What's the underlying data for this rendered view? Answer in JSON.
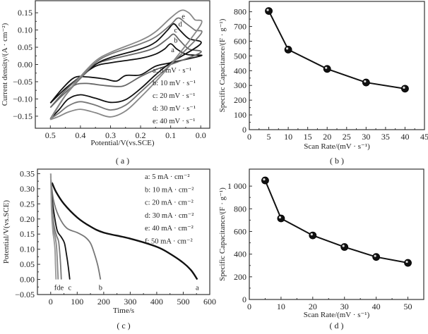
{
  "chart_data": [
    {
      "id": "a",
      "type": "line",
      "caption": "( a )",
      "xlabel": "Potential/V(vs.SCE)",
      "ylabel": "Current density/(A · cm⁻²)",
      "xlim": [
        0.55,
        -0.03
      ],
      "ylim": [
        -0.185,
        0.185
      ],
      "x_reversed": true,
      "xticks": [
        0.5,
        0.4,
        0.3,
        0.2,
        0.1,
        0.0
      ],
      "xtick_labels": [
        "0.5",
        "0.4",
        "0.3",
        "0.2",
        "0.1",
        "0.0"
      ],
      "yticks": [
        0.15,
        0.1,
        0.05,
        0.0,
        -0.05,
        -0.1,
        -0.15
      ],
      "ytick_labels": [
        "0.15",
        "0.10",
        "0.05",
        "0.00",
        "−0.05",
        "−0.10",
        "−0.15"
      ],
      "legend": [
        "a: 5 mV · s⁻¹",
        "b: 10 mV · s⁻¹",
        "c: 20 mV · s⁻¹",
        "d: 30 mV · s⁻¹",
        "e: 40 mV · s⁻¹"
      ],
      "legend_position": "bottom-right",
      "series": [
        {
          "name": "a",
          "color": "#111111",
          "anodic_peak": [
            0.1,
            0.06
          ],
          "anodic": [
            [
              0.5,
              -0.112
            ],
            [
              0.45,
              -0.07
            ],
            [
              0.4,
              -0.035
            ],
            [
              0.35,
              -0.005
            ],
            [
              0.3,
              0.005
            ],
            [
              0.2,
              0.018
            ],
            [
              0.15,
              0.03
            ],
            [
              0.12,
              0.045
            ],
            [
              0.1,
              0.06
            ],
            [
              0.08,
              0.045
            ],
            [
              0.05,
              0.03
            ],
            [
              0.02,
              0.027
            ],
            [
              0.0,
              0.025
            ]
          ],
          "cathodic": [
            [
              0.0,
              0.025
            ],
            [
              0.1,
              0.005
            ],
            [
              0.15,
              -0.005
            ],
            [
              0.2,
              -0.03
            ],
            [
              0.25,
              -0.032
            ],
            [
              0.28,
              -0.048
            ],
            [
              0.32,
              -0.042
            ],
            [
              0.38,
              -0.036
            ],
            [
              0.42,
              -0.038
            ],
            [
              0.46,
              -0.07
            ],
            [
              0.5,
              -0.112
            ]
          ]
        },
        {
          "name": "b",
          "color": "#666666",
          "anodic_peak": [
            0.09,
            0.088
          ],
          "anodic": [
            [
              0.5,
              -0.125
            ],
            [
              0.45,
              -0.075
            ],
            [
              0.4,
              -0.035
            ],
            [
              0.35,
              0.0
            ],
            [
              0.3,
              0.015
            ],
            [
              0.2,
              0.035
            ],
            [
              0.15,
              0.05
            ],
            [
              0.11,
              0.075
            ],
            [
              0.09,
              0.088
            ],
            [
              0.07,
              0.07
            ],
            [
              0.04,
              0.045
            ],
            [
              0.0,
              0.035
            ]
          ],
          "cathodic": [
            [
              0.0,
              0.035
            ],
            [
              0.1,
              0.0
            ],
            [
              0.15,
              -0.015
            ],
            [
              0.2,
              -0.035
            ],
            [
              0.25,
              -0.06
            ],
            [
              0.28,
              -0.064
            ],
            [
              0.33,
              -0.06
            ],
            [
              0.38,
              -0.055
            ],
            [
              0.42,
              -0.06
            ],
            [
              0.46,
              -0.09
            ],
            [
              0.5,
              -0.125
            ]
          ]
        },
        {
          "name": "c",
          "color": "#111111",
          "anodic_peak": [
            0.09,
            0.118
          ],
          "anodic": [
            [
              0.5,
              -0.158
            ],
            [
              0.45,
              -0.09
            ],
            [
              0.4,
              -0.04
            ],
            [
              0.35,
              0.0
            ],
            [
              0.3,
              0.02
            ],
            [
              0.2,
              0.045
            ],
            [
              0.15,
              0.065
            ],
            [
              0.11,
              0.1
            ],
            [
              0.09,
              0.118
            ],
            [
              0.07,
              0.1
            ],
            [
              0.04,
              0.075
            ],
            [
              0.0,
              0.06
            ]
          ],
          "cathodic": [
            [
              0.0,
              0.06
            ],
            [
              0.1,
              0.005
            ],
            [
              0.15,
              -0.03
            ],
            [
              0.2,
              -0.07
            ],
            [
              0.25,
              -0.102
            ],
            [
              0.3,
              -0.11
            ],
            [
              0.35,
              -0.098
            ],
            [
              0.4,
              -0.088
            ],
            [
              0.44,
              -0.1
            ],
            [
              0.47,
              -0.13
            ],
            [
              0.5,
              -0.158
            ]
          ]
        },
        {
          "name": "d",
          "color": "#777777",
          "anodic_peak": [
            0.075,
            0.135
          ],
          "anodic": [
            [
              0.5,
              -0.158
            ],
            [
              0.45,
              -0.09
            ],
            [
              0.4,
              -0.04
            ],
            [
              0.35,
              0.005
            ],
            [
              0.3,
              0.03
            ],
            [
              0.2,
              0.06
            ],
            [
              0.15,
              0.08
            ],
            [
              0.1,
              0.115
            ],
            [
              0.075,
              0.135
            ],
            [
              0.05,
              0.12
            ],
            [
              0.02,
              0.1
            ],
            [
              0.0,
              0.088
            ]
          ],
          "cathodic": [
            [
              0.0,
              0.088
            ],
            [
              0.1,
              0.0
            ],
            [
              0.15,
              -0.04
            ],
            [
              0.2,
              -0.08
            ],
            [
              0.25,
              -0.118
            ],
            [
              0.3,
              -0.132
            ],
            [
              0.35,
              -0.118
            ],
            [
              0.4,
              -0.108
            ],
            [
              0.44,
              -0.12
            ],
            [
              0.47,
              -0.14
            ],
            [
              0.5,
              -0.158
            ]
          ]
        },
        {
          "name": "e",
          "color": "#888888",
          "anodic_peak": [
            0.065,
            0.157
          ],
          "anodic": [
            [
              0.5,
              -0.16
            ],
            [
              0.45,
              -0.09
            ],
            [
              0.4,
              -0.035
            ],
            [
              0.35,
              0.01
            ],
            [
              0.3,
              0.035
            ],
            [
              0.2,
              0.07
            ],
            [
              0.15,
              0.095
            ],
            [
              0.1,
              0.135
            ],
            [
              0.065,
              0.157
            ],
            [
              0.04,
              0.15
            ],
            [
              0.02,
              0.13
            ],
            [
              0.0,
              0.115
            ]
          ],
          "cathodic": [
            [
              0.0,
              0.115
            ],
            [
              0.1,
              0.0
            ],
            [
              0.15,
              -0.05
            ],
            [
              0.2,
              -0.095
            ],
            [
              0.25,
              -0.135
            ],
            [
              0.3,
              -0.152
            ],
            [
              0.35,
              -0.14
            ],
            [
              0.4,
              -0.13
            ],
            [
              0.44,
              -0.138
            ],
            [
              0.47,
              -0.15
            ],
            [
              0.5,
              -0.16
            ]
          ]
        }
      ]
    },
    {
      "id": "b",
      "type": "line",
      "caption": "( b )",
      "xlabel": "Scan Rate/(mV · s⁻¹)",
      "ylabel": "Specific Capacitance/(F · g⁻¹)",
      "xlim": [
        0,
        45
      ],
      "ylim": [
        0,
        870
      ],
      "xticks": [
        0,
        5,
        10,
        15,
        20,
        25,
        30,
        35,
        40,
        45
      ],
      "yticks": [
        0,
        100,
        200,
        300,
        400,
        500,
        600,
        700,
        800
      ],
      "x": [
        5,
        10,
        20,
        30,
        40
      ],
      "values": [
        805,
        543,
        412,
        320,
        278
      ],
      "markers": true
    },
    {
      "id": "c",
      "type": "line",
      "caption": "( c )",
      "xlabel": "Time/s",
      "ylabel": "Potential/V(vs.SCE)",
      "xlim": [
        -50,
        600
      ],
      "ylim": [
        -0.05,
        0.365
      ],
      "xticks": [
        0,
        100,
        200,
        300,
        400,
        500,
        600
      ],
      "xtick_labels": [
        "0",
        "100",
        "200",
        "300",
        "400",
        "500",
        "600"
      ],
      "yticks": [
        -0.05,
        0.0,
        0.05,
        0.1,
        0.15,
        0.2,
        0.25,
        0.3,
        0.35
      ],
      "ytick_labels": [
        "−0.05",
        "0.00",
        "0.05",
        "0.10",
        "0.15",
        "0.20",
        "0.25",
        "0.30",
        "0.35"
      ],
      "legend": [
        "a: 5 mA · cm⁻²",
        "b: 10 mA · cm⁻²",
        "c: 20 mA · cm⁻²",
        "d: 30 mA · cm⁻²",
        "e: 40 mA · cm⁻²",
        "f: 50 mA · cm⁻²"
      ],
      "legend_position": "top-right",
      "curve_labels": [
        "f",
        "d",
        "e",
        "c",
        "b",
        "a"
      ],
      "series": [
        {
          "name": "a",
          "color": "#111111",
          "discharge_time": 553,
          "points": [
            [
              5,
              0.32
            ],
            [
              20,
              0.29
            ],
            [
              50,
              0.25
            ],
            [
              100,
              0.205
            ],
            [
              150,
              0.175
            ],
            [
              200,
              0.155
            ],
            [
              300,
              0.135
            ],
            [
              400,
              0.108
            ],
            [
              450,
              0.085
            ],
            [
              500,
              0.055
            ],
            [
              530,
              0.03
            ],
            [
              553,
              0.0
            ]
          ]
        },
        {
          "name": "b",
          "color": "#777777",
          "discharge_time": 188,
          "points": [
            [
              0,
              0.34
            ],
            [
              10,
              0.265
            ],
            [
              30,
              0.21
            ],
            [
              60,
              0.17
            ],
            [
              100,
              0.155
            ],
            [
              130,
              0.14
            ],
            [
              150,
              0.12
            ],
            [
              165,
              0.085
            ],
            [
              178,
              0.045
            ],
            [
              188,
              0.0
            ]
          ]
        },
        {
          "name": "c",
          "color": "#111111",
          "discharge_time": 72,
          "points": [
            [
              0,
              0.34
            ],
            [
              5,
              0.27
            ],
            [
              15,
              0.205
            ],
            [
              25,
              0.16
            ],
            [
              40,
              0.14
            ],
            [
              52,
              0.12
            ],
            [
              60,
              0.08
            ],
            [
              66,
              0.045
            ],
            [
              72,
              0.0
            ]
          ]
        },
        {
          "name": "d",
          "color": "#777777",
          "discharge_time": 40,
          "points": [
            [
              0,
              0.35
            ],
            [
              5,
              0.25
            ],
            [
              12,
              0.18
            ],
            [
              22,
              0.145
            ],
            [
              30,
              0.125
            ],
            [
              35,
              0.08
            ],
            [
              38,
              0.04
            ],
            [
              40,
              0.0
            ]
          ]
        },
        {
          "name": "e",
          "color": "#888888",
          "discharge_time": 28,
          "points": [
            [
              0,
              0.35
            ],
            [
              4,
              0.24
            ],
            [
              10,
              0.17
            ],
            [
              17,
              0.14
            ],
            [
              22,
              0.11
            ],
            [
              25,
              0.06
            ],
            [
              28,
              0.0
            ]
          ]
        },
        {
          "name": "f",
          "color": "#999999",
          "discharge_time": 20,
          "points": [
            [
              0,
              0.35
            ],
            [
              3,
              0.23
            ],
            [
              8,
              0.16
            ],
            [
              12,
              0.135
            ],
            [
              16,
              0.1
            ],
            [
              18,
              0.05
            ],
            [
              20,
              0.0
            ]
          ]
        }
      ]
    },
    {
      "id": "d",
      "type": "line",
      "caption": "( d )",
      "xlabel": "Scan Rate/(mV · s⁻¹)",
      "ylabel": "Specific Capacitance/(F · g⁻¹)",
      "xlim": [
        0,
        55
      ],
      "ylim": [
        0,
        1150
      ],
      "xticks": [
        0,
        10,
        20,
        30,
        40,
        50
      ],
      "yticks": [
        0,
        200,
        400,
        600,
        800,
        1000
      ],
      "ytick_labels": [
        "0",
        "200",
        "400",
        "600",
        "800",
        "1 000"
      ],
      "x": [
        5,
        10,
        20,
        30,
        40,
        50
      ],
      "values": [
        1050,
        715,
        565,
        463,
        375,
        323
      ],
      "markers": true
    }
  ]
}
